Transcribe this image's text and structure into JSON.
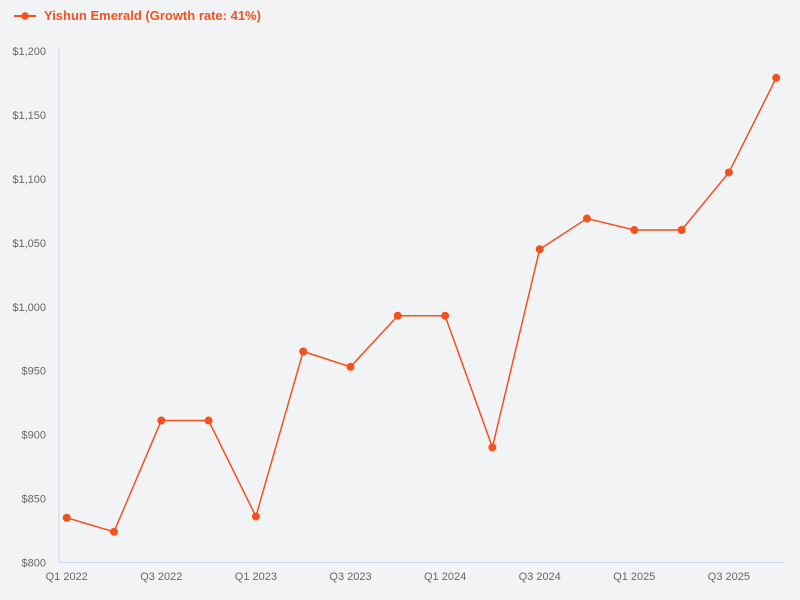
{
  "page": {
    "background": "#f2f3f5"
  },
  "legend": {
    "label": "Yishun Emerald (Growth rate: 41%)",
    "color": "#f4511e"
  },
  "chart_data": {
    "type": "line",
    "title": "",
    "xlabel": "",
    "ylabel": "",
    "categories": [
      "Q1 2022",
      "Q2 2022",
      "Q3 2022",
      "Q4 2022",
      "Q1 2023",
      "Q2 2023",
      "Q3 2023",
      "Q4 2023",
      "Q1 2024",
      "Q2 2024",
      "Q3 2024",
      "Q4 2024",
      "Q1 2025",
      "Q2 2025",
      "Q3 2025",
      "Q4 2025"
    ],
    "series": [
      {
        "name": "Yishun Emerald (Growth rate: 41%)",
        "color": "#f4511e",
        "values": [
          835,
          824,
          911,
          911,
          836,
          965,
          953,
          993,
          993,
          890,
          1045,
          1069,
          1060,
          1060,
          1105,
          1179
        ]
      }
    ],
    "ylim": [
      800,
      1200
    ],
    "y_tick_step": 50,
    "y_tick_labels": [
      "$800",
      "$850",
      "$900",
      "$950",
      "$1,000",
      "$1,050",
      "$1,100",
      "$1,150",
      "$1,200"
    ],
    "x_tick_every": 2,
    "x_tick_labels": [
      "Q1 2022",
      "Q3 2022",
      "Q1 2023",
      "Q3 2023",
      "Q1 2024",
      "Q3 2024",
      "Q1 2025",
      "Q3 2025"
    ],
    "grid": false,
    "legend_position": "top-left",
    "axis_color": "#ccd6eb",
    "label_color": "#666666",
    "marker_style": "filled-circle"
  }
}
